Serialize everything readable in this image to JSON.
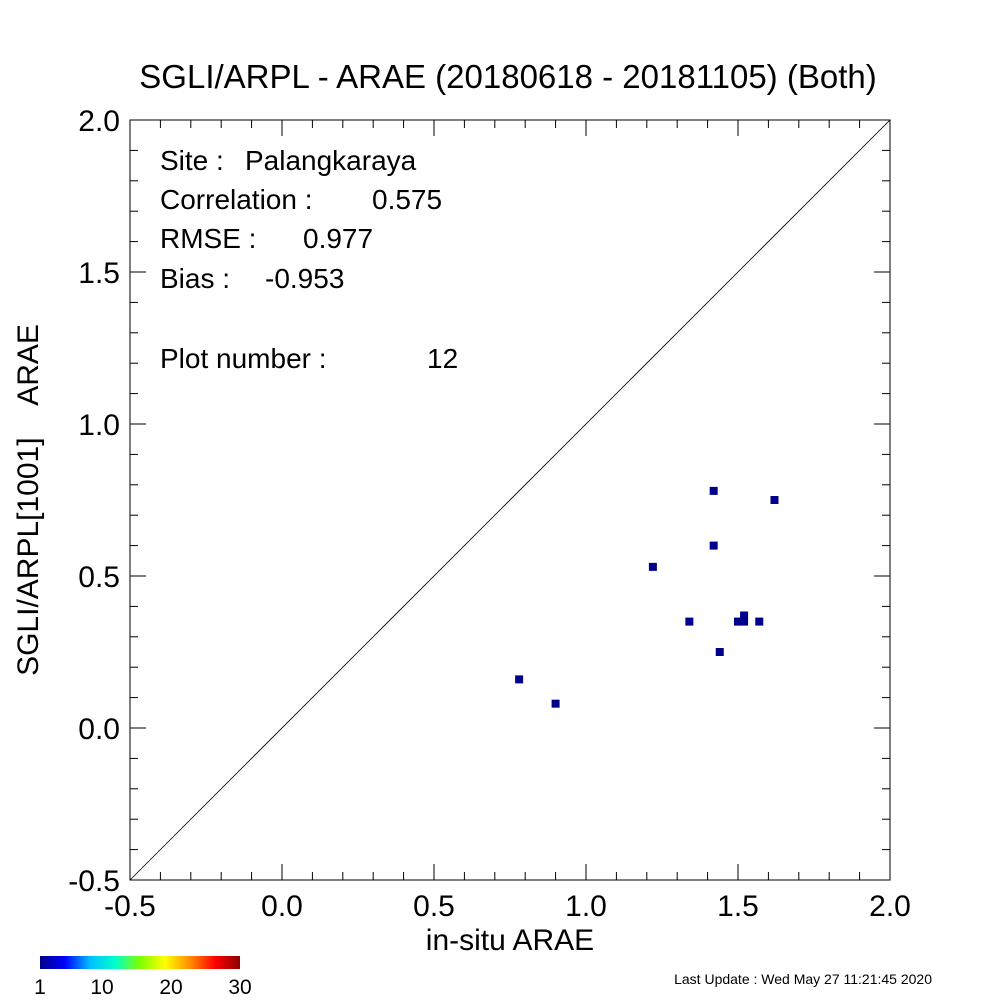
{
  "chart_data": {
    "type": "scatter",
    "title": "SGLI/ARPL - ARAE (20180618 - 20181105) (Both)",
    "xlabel": "in-situ ARAE",
    "ylabel": "SGLI/ARPL[1001]    ARAE",
    "xlim": [
      -0.5,
      2.0
    ],
    "ylim": [
      -0.5,
      2.0
    ],
    "xticks": [
      "-0.5",
      "0.0",
      "0.5",
      "1.0",
      "1.5",
      "2.0"
    ],
    "yticks": [
      "-0.5",
      "0.0",
      "0.5",
      "1.0",
      "1.5",
      "2.0"
    ],
    "reference_line": "1:1",
    "grid": false,
    "points": [
      {
        "x": 0.78,
        "y": 0.16
      },
      {
        "x": 0.9,
        "y": 0.08
      },
      {
        "x": 1.22,
        "y": 0.53
      },
      {
        "x": 1.34,
        "y": 0.35
      },
      {
        "x": 1.42,
        "y": 0.78
      },
      {
        "x": 1.42,
        "y": 0.6
      },
      {
        "x": 1.44,
        "y": 0.25
      },
      {
        "x": 1.5,
        "y": 0.35
      },
      {
        "x": 1.52,
        "y": 0.37
      },
      {
        "x": 1.52,
        "y": 0.35
      },
      {
        "x": 1.57,
        "y": 0.35
      },
      {
        "x": 1.62,
        "y": 0.75
      }
    ],
    "point_color": "#00008b",
    "stats": {
      "site_label": "Site :",
      "site": "Palangkaraya",
      "correlation_label": "Correlation :",
      "correlation": "0.575",
      "rmse_label": "RMSE :",
      "rmse": "0.977",
      "bias_label": "Bias :",
      "bias": "-0.953",
      "plot_number_label": "Plot number :",
      "plot_number": "12"
    },
    "colorbar": {
      "ticks": [
        "1",
        "10",
        "20",
        "30"
      ],
      "colors": [
        "#00008b",
        "#0000ff",
        "#00bfff",
        "#00ffcc",
        "#7fff00",
        "#ffff00",
        "#ff8c00",
        "#ff0000",
        "#8b0000"
      ]
    }
  },
  "footer": {
    "last_update": "Last Update : Wed May 27 11:21:45 2020"
  }
}
